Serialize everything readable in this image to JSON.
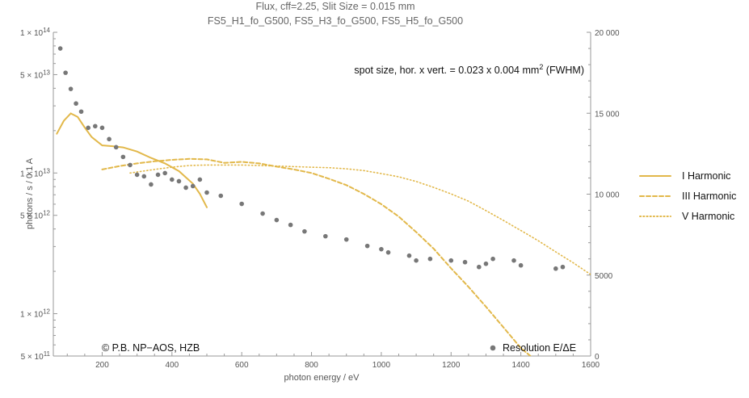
{
  "chart_data": {
    "type": "line",
    "title": "Flux, cff=2.25, Slit Size = 0.015 mm",
    "subtitle": "FS5_H1_fo_G500, FS5_H3_fo_G500, FS5_H5_fo_G500",
    "xlabel": "photon energy / eV",
    "ylabel": "photons / s / 0.1 A",
    "xlim": [
      60,
      1600
    ],
    "ylim_log": [
      500000000000.0,
      100000000000000.0
    ],
    "y2lim": [
      0,
      20000
    ],
    "x_tick_labels": [
      "200",
      "400",
      "600",
      "800",
      "1000",
      "1200",
      "1400",
      "1600"
    ],
    "y_tick_labels": [
      {
        "m": "1",
        "e": "14"
      },
      {
        "m": "5",
        "e": "13"
      },
      {
        "m": "1",
        "e": "13"
      },
      {
        "m": "5",
        "e": "12"
      },
      {
        "m": "1",
        "e": "12"
      },
      {
        "m": "5",
        "e": "11"
      }
    ],
    "y2_tick_labels": [
      "20 000",
      "15 000",
      "10 000",
      "5000",
      "0"
    ],
    "annotation": {
      "main": "spot size, hor. x vert. = 0.023 x 0.004 mm",
      "sup": "2",
      "tail": " (FWHM)"
    },
    "copyright": "© P.B. NP−AOS, HZB",
    "grid": false,
    "legend_position": "right",
    "colors": {
      "series": "#e2b84a",
      "points": "#777777",
      "axes": "#999999"
    },
    "series": [
      {
        "name": "I Harmonic",
        "style": "solid",
        "x": [
          70,
          90,
          110,
          130,
          150,
          170,
          200,
          230,
          260,
          300,
          340,
          380,
          420,
          460,
          480,
          500
        ],
        "y": [
          19000000000000.0,
          23500000000000.0,
          26500000000000.0,
          25000000000000.0,
          21000000000000.0,
          18000000000000.0,
          15700000000000.0,
          15500000000000.0,
          15200000000000.0,
          14200000000000.0,
          12800000000000.0,
          11700000000000.0,
          10300000000000.0,
          8400000000000.0,
          7100000000000.0,
          5700000000000.0
        ]
      },
      {
        "name": "III Harmonic",
        "style": "dashed",
        "x": [
          200,
          250,
          300,
          350,
          400,
          450,
          500,
          550,
          600,
          650,
          700,
          750,
          800,
          850,
          900,
          950,
          1000,
          1050,
          1100,
          1150,
          1200,
          1250,
          1300,
          1350,
          1400,
          1450
        ],
        "y": [
          10600000000000.0,
          11200000000000.0,
          11700000000000.0,
          12100000000000.0,
          12400000000000.0,
          12600000000000.0,
          12500000000000.0,
          11800000000000.0,
          12000000000000.0,
          11700000000000.0,
          11100000000000.0,
          10600000000000.0,
          10000000000000.0,
          9100000000000.0,
          8200000000000.0,
          7100000000000.0,
          6000000000000.0,
          4900000000000.0,
          3800000000000.0,
          2900000000000.0,
          2100000000000.0,
          1550000000000.0,
          1120000000000.0,
          800000000000.0,
          570000000000.0,
          450000000000.0
        ]
      },
      {
        "name": "V Harmonic",
        "style": "dotted",
        "x": [
          280,
          350,
          400,
          450,
          500,
          550,
          600,
          650,
          700,
          750,
          800,
          850,
          900,
          950,
          1000,
          1050,
          1100,
          1150,
          1200,
          1250,
          1300,
          1350,
          1400,
          1450,
          1500,
          1550,
          1600
        ],
        "y": [
          10000000000000.0,
          10600000000000.0,
          11000000000000.0,
          11300000000000.0,
          11400000000000.0,
          11400000000000.0,
          11400000000000.0,
          11300000000000.0,
          11200000000000.0,
          11100000000000.0,
          11000000000000.0,
          10900000000000.0,
          10700000000000.0,
          10400000000000.0,
          9900000000000.0,
          9400000000000.0,
          8700000000000.0,
          7900000000000.0,
          7100000000000.0,
          6300000000000.0,
          5400000000000.0,
          4600000000000.0,
          3900000000000.0,
          3300000000000.0,
          2750000000000.0,
          2300000000000.0,
          1900000000000.0
        ]
      },
      {
        "name": "Resolution E/ΔE",
        "style": "points",
        "axis": "right",
        "x": [
          80,
          95,
          110,
          125,
          140,
          160,
          180,
          200,
          220,
          240,
          260,
          280,
          300,
          320,
          340,
          360,
          380,
          400,
          420,
          440,
          460,
          480,
          500,
          540,
          600,
          660,
          700,
          740,
          780,
          840,
          900,
          960,
          1000,
          1020,
          1080,
          1100,
          1140,
          1200,
          1240,
          1280,
          1300,
          1320,
          1380,
          1400,
          1500,
          1520
        ],
        "y": [
          19000,
          17500,
          16500,
          15600,
          15100,
          14100,
          14200,
          14100,
          13400,
          12900,
          12300,
          11800,
          11200,
          11100,
          10600,
          11200,
          11300,
          10900,
          10800,
          10400,
          10500,
          10900,
          10100,
          9900,
          9400,
          8800,
          8400,
          8100,
          7700,
          7400,
          7200,
          6800,
          6600,
          6400,
          6200,
          5900,
          6000,
          5900,
          5800,
          5500,
          5700,
          6000,
          5900,
          5600,
          5400,
          5500
        ]
      }
    ]
  }
}
